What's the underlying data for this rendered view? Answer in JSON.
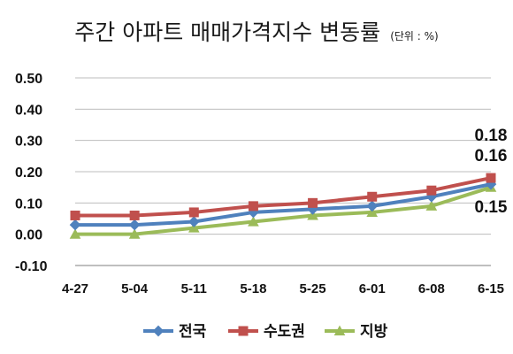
{
  "chart_data": {
    "type": "line",
    "title": "주간 아파트 매매가격지수 변동률",
    "title_unit": "(단위 : %)",
    "categories": [
      "4-27",
      "5-04",
      "5-11",
      "5-18",
      "5-25",
      "6-01",
      "6-08",
      "6-15"
    ],
    "ylim": [
      -0.1,
      0.5
    ],
    "yticks": [
      "0.50",
      "0.40",
      "0.30",
      "0.20",
      "0.10",
      "0.00",
      "-0.10"
    ],
    "grid": true,
    "legend_position": "bottom",
    "series": [
      {
        "name": "전국",
        "color": "#4f81bd",
        "marker": "diamond",
        "values": [
          0.03,
          0.03,
          0.04,
          0.07,
          0.08,
          0.09,
          0.12,
          0.16
        ]
      },
      {
        "name": "수도권",
        "color": "#c0504d",
        "marker": "square",
        "values": [
          0.06,
          0.06,
          0.07,
          0.09,
          0.1,
          0.12,
          0.14,
          0.18
        ]
      },
      {
        "name": "지방",
        "color": "#9bbb59",
        "marker": "triangle",
        "values": [
          0.0,
          0.0,
          0.02,
          0.04,
          0.06,
          0.07,
          0.09,
          0.15
        ]
      }
    ],
    "data_labels": [
      {
        "series": "수도권",
        "index": 7,
        "text": "0.18"
      },
      {
        "series": "전국",
        "index": 7,
        "text": "0.16"
      },
      {
        "series": "지방",
        "index": 7,
        "text": "0.15"
      }
    ]
  }
}
